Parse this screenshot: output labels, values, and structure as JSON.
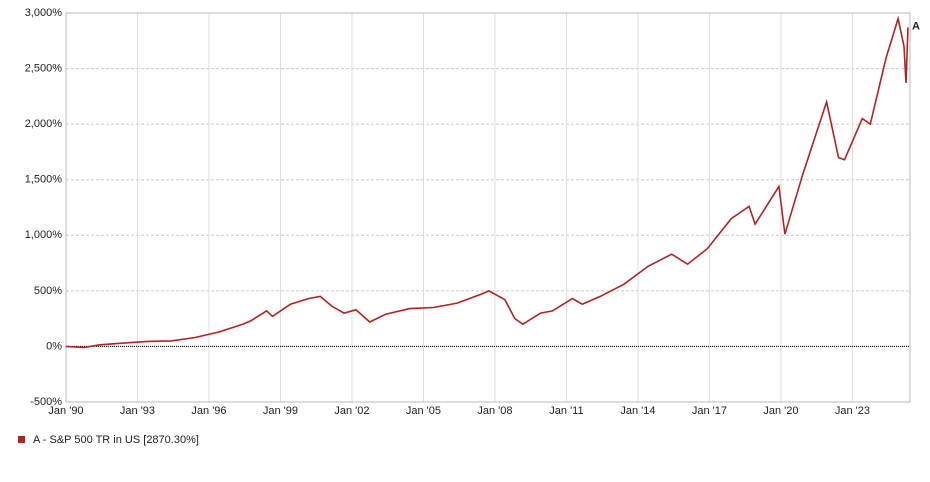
{
  "chart_data": {
    "type": "line",
    "x": [
      "1990-01",
      "1990-10",
      "1991-06",
      "1992-06",
      "1993-06",
      "1994-06",
      "1995-06",
      "1996-06",
      "1997-06",
      "1997-10",
      "1998-06",
      "1998-09",
      "1999-06",
      "2000-03",
      "2000-09",
      "2001-03",
      "2001-09",
      "2002-03",
      "2002-10",
      "2003-06",
      "2004-06",
      "2005-06",
      "2006-06",
      "2007-06",
      "2007-10",
      "2008-06",
      "2008-11",
      "2009-03",
      "2009-12",
      "2010-06",
      "2011-04",
      "2011-09",
      "2012-06",
      "2013-06",
      "2014-06",
      "2015-06",
      "2016-02",
      "2016-12",
      "2017-12",
      "2018-09",
      "2018-12",
      "2019-12",
      "2020-03",
      "2020-12",
      "2021-12",
      "2022-06",
      "2022-09",
      "2023-06",
      "2023-10",
      "2024-06",
      "2024-12",
      "2025-03",
      "2025-04",
      "2025-05"
    ],
    "series": [
      {
        "name": "A - S&P 500 TR in US [2870.30%]",
        "end_label": "A",
        "color": "#b22222",
        "values": [
          0,
          -10,
          15,
          30,
          45,
          50,
          80,
          130,
          200,
          230,
          320,
          270,
          380,
          430,
          450,
          360,
          300,
          330,
          220,
          290,
          340,
          350,
          390,
          470,
          500,
          420,
          250,
          200,
          300,
          320,
          430,
          380,
          450,
          560,
          720,
          830,
          740,
          880,
          1150,
          1260,
          1100,
          1440,
          1010,
          1550,
          2200,
          1700,
          1680,
          2050,
          2000,
          2600,
          2950,
          2700,
          2370,
          2870
        ]
      }
    ],
    "xlim": [
      "1990-01",
      "2025-06"
    ],
    "xticks": [
      {
        "value": "1990-01",
        "label": "Jan '90"
      },
      {
        "value": "1993-01",
        "label": "Jan '93"
      },
      {
        "value": "1996-01",
        "label": "Jan '96"
      },
      {
        "value": "1999-01",
        "label": "Jan '99"
      },
      {
        "value": "2002-01",
        "label": "Jan '02"
      },
      {
        "value": "2005-01",
        "label": "Jan '05"
      },
      {
        "value": "2008-01",
        "label": "Jan '08"
      },
      {
        "value": "2011-01",
        "label": "Jan '11"
      },
      {
        "value": "2014-01",
        "label": "Jan '14"
      },
      {
        "value": "2017-01",
        "label": "Jan '17"
      },
      {
        "value": "2020-01",
        "label": "Jan '20"
      },
      {
        "value": "2023-01",
        "label": "Jan '23"
      }
    ],
    "ylim": [
      -500,
      3000
    ],
    "yticks": [
      {
        "value": -500,
        "label": "-500%"
      },
      {
        "value": 0,
        "label": "0%"
      },
      {
        "value": 500,
        "label": "500%"
      },
      {
        "value": 1000,
        "label": "1,000%"
      },
      {
        "value": 1500,
        "label": "1,500%"
      },
      {
        "value": 2000,
        "label": "2,000%"
      },
      {
        "value": 2500,
        "label": "2,500%"
      },
      {
        "value": 3000,
        "label": "3,000%"
      }
    ],
    "grid": true
  }
}
